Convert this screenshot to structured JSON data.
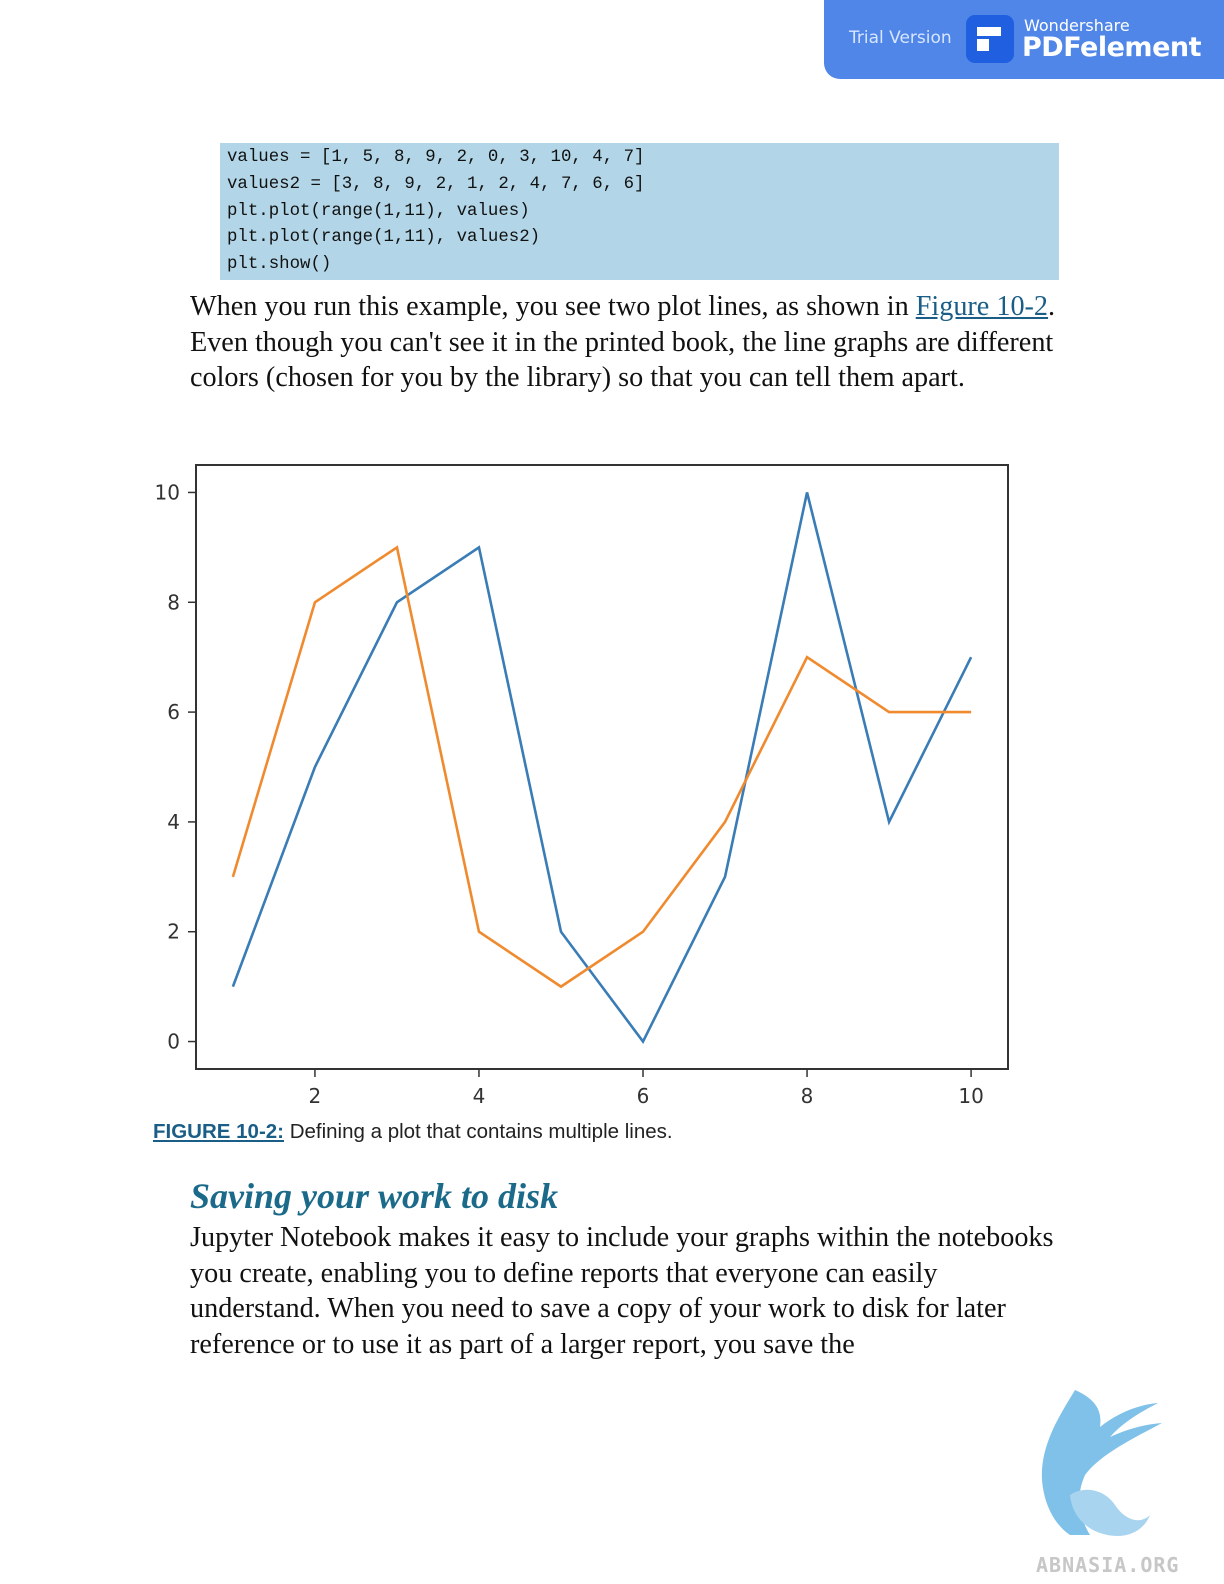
{
  "banner": {
    "trial_label": "Trial Version",
    "brand_top": "Wondershare",
    "brand_main": "PDFelement",
    "color": "#4f86e8"
  },
  "code_lines": [
    "values = [1, 5, 8, 9, 2, 0, 3, 10, 4, 7]",
    "values2 = [3, 8, 9, 2, 1, 2, 4, 7, 6, 6]",
    "plt.plot(range(1,11), values)",
    "plt.plot(range(1,11), values2)",
    "plt.show()"
  ],
  "paragraph1": {
    "before_link": "When you run this example, you see two plot lines, as shown in ",
    "link_text": "Figure 10-2",
    "after_link": ". Even though you can't see it in the printed book, the line graphs are different colors (chosen for you by the library) so that you can tell them apart."
  },
  "chart_data": {
    "type": "line",
    "x": [
      1,
      2,
      3,
      4,
      5,
      6,
      7,
      8,
      9,
      10
    ],
    "series": [
      {
        "values": [
          1,
          5,
          8,
          9,
          2,
          0,
          3,
          10,
          4,
          7
        ],
        "color": "#3a7cb5"
      },
      {
        "values": [
          3,
          8,
          9,
          2,
          1,
          2,
          4,
          7,
          6,
          6
        ],
        "color": "#f08a2e"
      }
    ],
    "x_ticks": [
      2,
      4,
      6,
      8,
      10
    ],
    "y_ticks": [
      0,
      2,
      4,
      6,
      8,
      10
    ],
    "xlim": [
      0.55,
      10.45
    ],
    "ylim": [
      -0.5,
      10.5
    ],
    "grid": false,
    "title": "",
    "xlabel": "",
    "ylabel": ""
  },
  "caption": {
    "figure_label": "FIGURE 10-2:",
    "text": " Defining a plot that contains multiple lines."
  },
  "section_heading": "Saving your work to disk",
  "paragraph2": "Jupyter Notebook makes it easy to include your graphs within the notebooks you create, enabling you to define reports that everyone can easily understand. When you need to save a copy of your work to disk for later reference or to use it as part of a larger report, you save the",
  "watermark": {
    "site": "ABNASIA.ORG"
  }
}
